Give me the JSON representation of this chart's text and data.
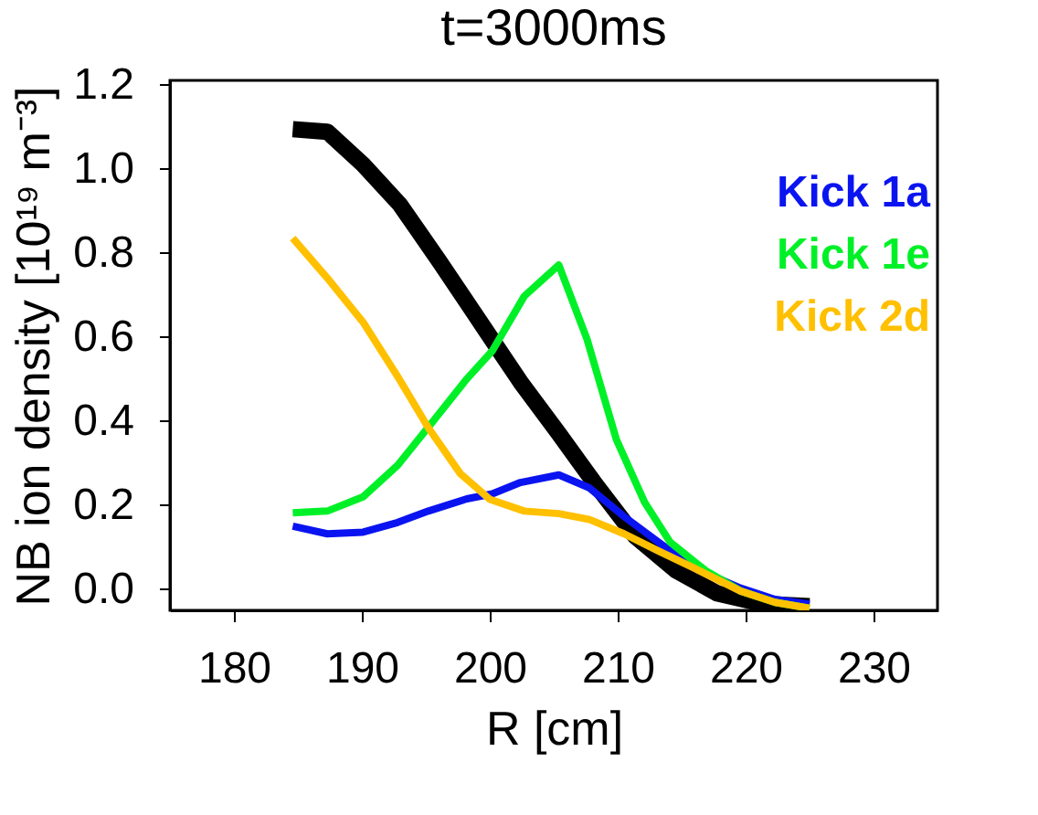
{
  "chart_data": {
    "type": "line",
    "title": "t=3000ms",
    "xlabel": "R [cm]",
    "ylabel": "NB ion density [10¹⁹ m⁻³]",
    "xlim": [
      175,
      235
    ],
    "xticks": [
      180,
      190,
      200,
      210,
      220,
      230
    ],
    "ylim": [
      -0.05,
      1.21
    ],
    "yticks": [
      {
        "value": 0,
        "label": "0.0"
      },
      0.2,
      0.4,
      0.6,
      0.8,
      {
        "value": 1,
        "label": "1.0"
      },
      1.2
    ],
    "grid": false,
    "legend": "top right",
    "marker": "none",
    "line_style": "solid",
    "series": [
      {
        "color": "#000000",
        "x": [
          184.6,
          187.3,
          190.1,
          193.0,
          196.1,
          199.7,
          202.4,
          205.4,
          208.3,
          211.4,
          214.6,
          217.8,
          221.4,
          225.0
        ],
        "values": [
          1.094,
          1.088,
          1.01,
          0.914,
          0.778,
          0.615,
          0.493,
          0.37,
          0.248,
          0.125,
          0.044,
          -0.01,
          -0.035,
          -0.04
        ]
      },
      {
        "name": "Kick 1a",
        "color": "#0a14f0",
        "x": [
          184.6,
          187.3,
          190.1,
          192.8,
          195.2,
          198.2,
          200.2,
          202.4,
          205.4,
          207.8,
          210.5,
          213.2,
          216.0,
          219.6,
          222.3,
          225.0
        ],
        "values": [
          0.15,
          0.132,
          0.136,
          0.159,
          0.186,
          0.215,
          0.227,
          0.254,
          0.272,
          0.241,
          0.173,
          0.112,
          0.05,
          0.003,
          -0.024,
          -0.035
        ]
      },
      {
        "name": "Kick 1e",
        "color": "#00f028",
        "x": [
          184.6,
          187.3,
          190.1,
          192.8,
          195.5,
          198.2,
          200.2,
          202.7,
          205.4,
          207.6,
          209.9,
          212.1,
          214.1,
          216.9,
          219.6,
          222.3,
          225.0
        ],
        "values": [
          0.182,
          0.186,
          0.22,
          0.295,
          0.397,
          0.5,
          0.567,
          0.697,
          0.771,
          0.595,
          0.356,
          0.207,
          0.112,
          0.044,
          -0.004,
          -0.031,
          -0.045
        ]
      },
      {
        "name": "Kick 2d",
        "color": "#ffc000",
        "x": [
          184.6,
          187.3,
          190.1,
          192.8,
          195.2,
          197.7,
          200.0,
          202.7,
          205.4,
          207.8,
          210.5,
          213.2,
          216.0,
          219.6,
          222.3,
          225.0
        ],
        "values": [
          0.835,
          0.74,
          0.635,
          0.506,
          0.384,
          0.275,
          0.214,
          0.186,
          0.18,
          0.166,
          0.132,
          0.091,
          0.05,
          -0.004,
          -0.031,
          -0.045
        ]
      }
    ]
  }
}
